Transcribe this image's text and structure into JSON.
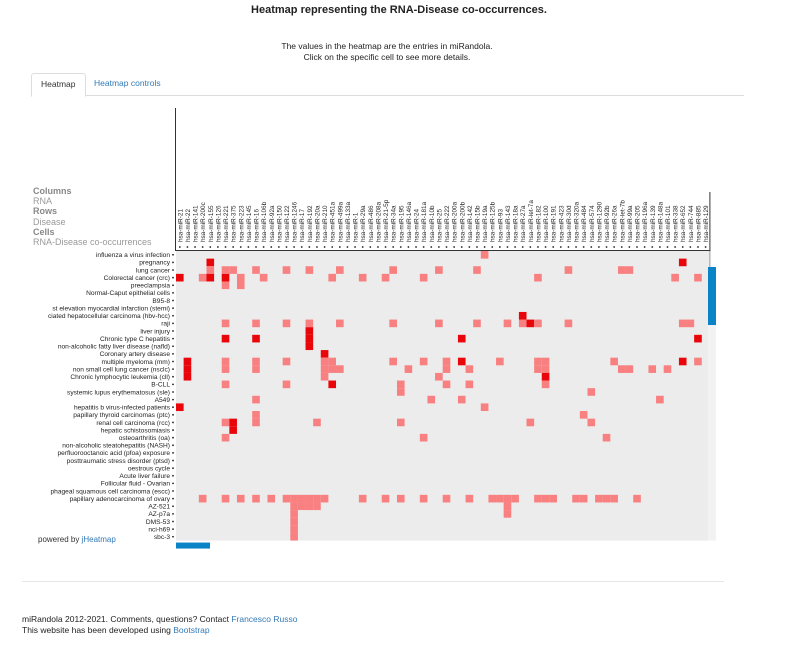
{
  "page": {
    "title": "Heatmap representing the RNA-Disease co-occurrences.",
    "intro_line1": "The values in the heatmap are the entries in miRandola.",
    "intro_line2": "Click on the specific cell to see more details.",
    "tabs": [
      {
        "label": "Heatmap",
        "active": true
      },
      {
        "label": "Heatmap controls",
        "active": false
      }
    ],
    "legend": {
      "columns_heading": "Columns",
      "columns_value": "RNA",
      "rows_heading": "Rows",
      "rows_value": "Disease",
      "cells_heading": "Cells",
      "cells_value": "RNA-Disease co-occurrences"
    },
    "powered_prefix": "powered by ",
    "powered_link": "jHeatmap",
    "footer_line1_text": "miRandola 2012-2021. Comments, questions? Contact ",
    "footer_line1_link": "Francesco Russo",
    "footer_line2_text": "This website has been developed using ",
    "footer_line2_link": "Bootstrap"
  },
  "colors": {
    "empty": "#ececec",
    "low": "#f88080",
    "high": "#e8060b",
    "scrollbar": "#0a84c6"
  },
  "chart_data": {
    "type": "heatmap",
    "columns": [
      "hsa-miR-21",
      "hsa-miR-22",
      "hsa-miR-141",
      "hsa-miR-200c",
      "hsa-miR-155",
      "hsa-miR-126",
      "hsa-miR-221",
      "hsa-miR-375",
      "hsa-miR-223",
      "hsa-miR-145",
      "hsa-miR-16",
      "hsa-miR-106b",
      "hsa-miR-92a",
      "hsa-miR-150",
      "hsa-miR-122",
      "hsa-miR-1246",
      "hsa-miR-17",
      "hsa-miR-192",
      "hsa-miR-20a",
      "hsa-miR-210",
      "hsa-miR-451a",
      "hsa-miR-499a",
      "hsa-miR-133a",
      "hsa-miR-1",
      "hsa-miR-29a",
      "hsa-miR-486",
      "hsa-miR-208a",
      "hsa-miR-21-5p",
      "hsa-miR-34a",
      "hsa-miR-195",
      "hsa-miR-146a",
      "hsa-miR-24",
      "hsa-miR-181a",
      "hsa-miR-10b",
      "hsa-miR-25",
      "hsa-miR-222",
      "hsa-miR-200a",
      "hsa-miR-200b",
      "hsa-miR-142",
      "hsa-miR-15b",
      "hsa-miR-19a",
      "hsa-miR-125b",
      "hsa-miR-93",
      "hsa-miR-143",
      "hsa-miR-18a",
      "hsa-miR-27a",
      "hsa-miR-let-7a",
      "hsa-miR-182",
      "hsa-miR-100",
      "hsa-miR-191",
      "hsa-miR-423",
      "hsa-miR-30d",
      "hsa-miR-320a",
      "hsa-miR-484",
      "hsa-miR-574",
      "hsa-miR-1290",
      "hsa-miR-92b",
      "hsa-miR-26a",
      "hsa-miR-let-7b",
      "hsa-miR-99a",
      "hsa-miR-205",
      "hsa-miR-196a",
      "hsa-miR-139",
      "hsa-miR-148a",
      "hsa-miR-101",
      "hsa-miR-338",
      "hsa-miR-652",
      "hsa-miR-744",
      "hsa-miR-885",
      "hsa-miR-129"
    ],
    "rows": [
      "influenza a virus infection",
      "pregnancy",
      "lung cancer",
      "Colorectal cancer (crc)",
      "preeclampsia",
      "Normal-Caput epithelial cells",
      "B95-8",
      "st elevation myocardial infarction (stemi)",
      "ciated hepatocellular carcinoma (hbv-hcc)",
      "raji",
      "liver injury",
      "Chronic type C hepatitis",
      "non-alcoholic fatty liver disease (nafld)",
      "Coronary artery disease",
      "multiple myeloma (mm)",
      "non small cell lung cancer (nsclc)",
      "Chronic lymphocytic leukemia (cll)",
      "B-CLL",
      "systemic lupus erythematosus (sle)",
      "A549",
      "hepatitis b virus-infected patients",
      "papillary thyroid carcinomas (ptc)",
      "renal cell carcinoma (rcc)",
      "hepatic schistosomiasis",
      "osteoarthritis (oa)",
      "non-alcoholic steatohepatitis (NASH)",
      "perfluorooctanoic acid (pfoa) exposure",
      "posttraumatic stress disorder (ptsd)",
      "oestrous cycle",
      "Acute liver failure",
      "Follicular fluid - Ovarian",
      "phageal squamous cell carcinoma (escc)",
      "papillary adenocarcinoma of ovary",
      "AZ-521",
      "AZ-p7a",
      "DMS-53",
      "nci-h69",
      "sbc-3"
    ],
    "cells": [
      [
        0,
        40,
        1
      ],
      [
        1,
        4,
        2
      ],
      [
        1,
        66,
        2
      ],
      [
        2,
        4,
        1
      ],
      [
        2,
        6,
        1
      ],
      [
        2,
        7,
        1
      ],
      [
        2,
        10,
        1
      ],
      [
        2,
        14,
        1
      ],
      [
        2,
        17,
        1
      ],
      [
        2,
        21,
        1
      ],
      [
        2,
        28,
        1
      ],
      [
        2,
        34,
        1
      ],
      [
        2,
        39,
        1
      ],
      [
        2,
        51,
        1
      ],
      [
        2,
        58,
        1
      ],
      [
        2,
        59,
        1
      ],
      [
        3,
        0,
        2
      ],
      [
        3,
        3,
        1
      ],
      [
        3,
        4,
        2
      ],
      [
        3,
        6,
        2
      ],
      [
        3,
        8,
        1
      ],
      [
        3,
        11,
        1
      ],
      [
        3,
        20,
        1
      ],
      [
        3,
        24,
        1
      ],
      [
        3,
        27,
        1
      ],
      [
        3,
        32,
        1
      ],
      [
        3,
        47,
        1
      ],
      [
        3,
        65,
        1
      ],
      [
        3,
        68,
        1
      ],
      [
        4,
        6,
        1
      ],
      [
        4,
        8,
        1
      ],
      [
        9,
        6,
        1
      ],
      [
        9,
        10,
        1
      ],
      [
        9,
        14,
        1
      ],
      [
        9,
        17,
        1
      ],
      [
        9,
        21,
        1
      ],
      [
        9,
        28,
        1
      ],
      [
        9,
        34,
        1
      ],
      [
        9,
        39,
        1
      ],
      [
        9,
        43,
        1
      ],
      [
        9,
        45,
        1
      ],
      [
        9,
        46,
        2
      ],
      [
        9,
        47,
        1
      ],
      [
        9,
        51,
        1
      ],
      [
        9,
        66,
        1
      ],
      [
        9,
        67,
        1
      ],
      [
        8,
        45,
        2
      ],
      [
        10,
        17,
        2
      ],
      [
        11,
        6,
        2
      ],
      [
        11,
        10,
        2
      ],
      [
        11,
        17,
        2
      ],
      [
        11,
        37,
        2
      ],
      [
        11,
        68,
        2
      ],
      [
        12,
        17,
        2
      ],
      [
        13,
        19,
        2
      ],
      [
        14,
        1,
        2
      ],
      [
        14,
        6,
        1
      ],
      [
        14,
        10,
        1
      ],
      [
        14,
        14,
        1
      ],
      [
        14,
        19,
        1
      ],
      [
        14,
        20,
        1
      ],
      [
        14,
        28,
        1
      ],
      [
        14,
        32,
        1
      ],
      [
        14,
        35,
        1
      ],
      [
        14,
        37,
        2
      ],
      [
        14,
        42,
        1
      ],
      [
        14,
        47,
        1
      ],
      [
        14,
        48,
        1
      ],
      [
        14,
        57,
        1
      ],
      [
        14,
        66,
        2
      ],
      [
        14,
        68,
        1
      ],
      [
        15,
        1,
        2
      ],
      [
        15,
        6,
        1
      ],
      [
        15,
        10,
        1
      ],
      [
        15,
        19,
        1
      ],
      [
        15,
        20,
        1
      ],
      [
        15,
        21,
        1
      ],
      [
        15,
        30,
        1
      ],
      [
        15,
        35,
        1
      ],
      [
        15,
        38,
        1
      ],
      [
        15,
        47,
        1
      ],
      [
        15,
        48,
        1
      ],
      [
        15,
        58,
        1
      ],
      [
        15,
        59,
        1
      ],
      [
        15,
        62,
        1
      ],
      [
        15,
        64,
        1
      ],
      [
        16,
        1,
        2
      ],
      [
        16,
        19,
        1
      ],
      [
        16,
        34,
        1
      ],
      [
        16,
        48,
        2
      ],
      [
        17,
        6,
        1
      ],
      [
        17,
        14,
        1
      ],
      [
        17,
        20,
        2
      ],
      [
        17,
        29,
        1
      ],
      [
        17,
        35,
        1
      ],
      [
        17,
        38,
        1
      ],
      [
        17,
        48,
        1
      ],
      [
        18,
        29,
        1
      ],
      [
        18,
        54,
        1
      ],
      [
        19,
        10,
        1
      ],
      [
        19,
        33,
        1
      ],
      [
        19,
        37,
        1
      ],
      [
        19,
        63,
        1
      ],
      [
        20,
        0,
        2
      ],
      [
        20,
        40,
        1
      ],
      [
        21,
        10,
        1
      ],
      [
        21,
        53,
        1
      ],
      [
        22,
        6,
        1
      ],
      [
        22,
        7,
        2
      ],
      [
        22,
        10,
        1
      ],
      [
        22,
        18,
        1
      ],
      [
        22,
        29,
        1
      ],
      [
        22,
        46,
        1
      ],
      [
        22,
        54,
        1
      ],
      [
        23,
        7,
        2
      ],
      [
        24,
        6,
        1
      ],
      [
        24,
        32,
        1
      ],
      [
        24,
        56,
        1
      ],
      [
        32,
        3,
        1
      ],
      [
        32,
        6,
        1
      ],
      [
        32,
        8,
        1
      ],
      [
        32,
        10,
        1
      ],
      [
        32,
        12,
        1
      ],
      [
        32,
        14,
        1
      ],
      [
        32,
        15,
        1
      ],
      [
        32,
        16,
        1
      ],
      [
        32,
        17,
        1
      ],
      [
        32,
        18,
        1
      ],
      [
        32,
        19,
        1
      ],
      [
        32,
        24,
        1
      ],
      [
        32,
        27,
        1
      ],
      [
        32,
        29,
        1
      ],
      [
        32,
        32,
        1
      ],
      [
        32,
        35,
        1
      ],
      [
        32,
        38,
        1
      ],
      [
        32,
        41,
        1
      ],
      [
        32,
        42,
        1
      ],
      [
        32,
        43,
        1
      ],
      [
        32,
        44,
        1
      ],
      [
        32,
        47,
        1
      ],
      [
        32,
        48,
        1
      ],
      [
        32,
        49,
        1
      ],
      [
        32,
        52,
        1
      ],
      [
        32,
        53,
        1
      ],
      [
        32,
        55,
        1
      ],
      [
        32,
        56,
        1
      ],
      [
        32,
        57,
        1
      ],
      [
        32,
        60,
        1
      ],
      [
        33,
        15,
        1
      ],
      [
        33,
        16,
        1
      ],
      [
        33,
        17,
        1
      ],
      [
        33,
        18,
        1
      ],
      [
        33,
        43,
        1
      ],
      [
        34,
        15,
        1
      ],
      [
        34,
        43,
        1
      ],
      [
        35,
        15,
        1
      ],
      [
        36,
        15,
        1
      ],
      [
        37,
        15,
        1
      ]
    ]
  }
}
